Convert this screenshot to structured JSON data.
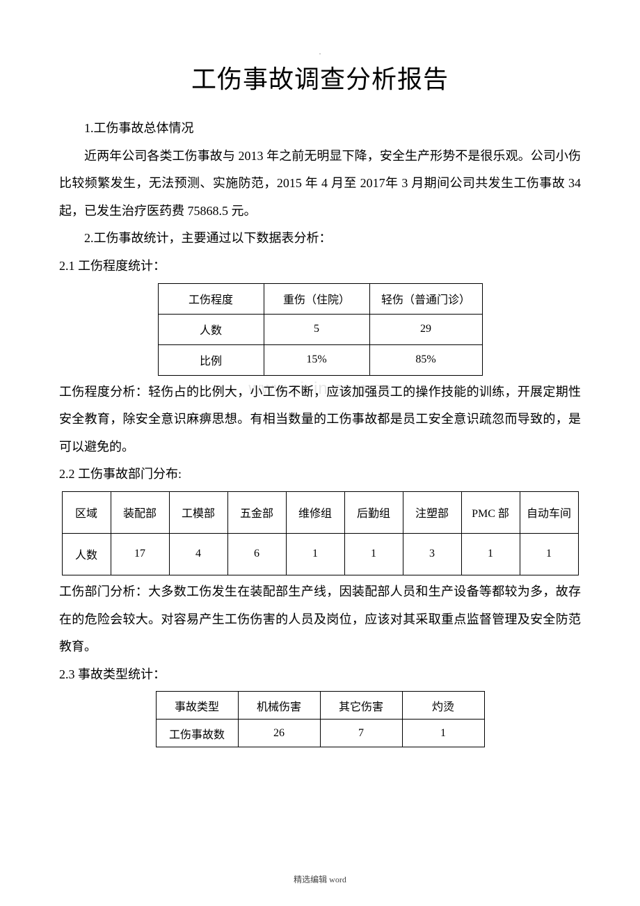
{
  "header_marker": ".",
  "title": "工伤事故调查分析报告",
  "section1": {
    "heading": "1.工伤事故总体情况",
    "para": "近两年公司各类工伤事故与 2013 年之前无明显下降，安全生产形势不是很乐观。公司小伤比较频繁发生，无法预测、实施防范，2015 年 4 月至 2017年 3 月期间公司共发生工伤事故 34 起，已发生治疗医药费 75868.5 元。"
  },
  "section2": {
    "heading": "2.工伤事故统计，主要通过以下数据表分析：",
    "sub1": {
      "heading": "2.1 工伤程度统计：",
      "table": {
        "rows": [
          [
            "工伤程度",
            "重伤（住院）",
            "轻伤（普通门诊）"
          ],
          [
            "人数",
            "5",
            "29"
          ],
          [
            "比例",
            "15%",
            "85%"
          ]
        ]
      },
      "analysis": "工伤程度分析：轻伤占的比例大，小工伤不断，应该加强员工的操作技能的训练，开展定期性安全教育，除安全意识麻痹思想。有相当数量的工伤事故都是员工安全意识疏忽而导致的，是可以避免的。"
    },
    "sub2": {
      "heading": "2.2 工伤事故部门分布:",
      "table": {
        "rows": [
          [
            "区域",
            "装配部",
            "工模部",
            "五金部",
            "维修组",
            "后勤组",
            "注塑部",
            "PMC 部",
            "自动车间"
          ],
          [
            "人数",
            "17",
            "4",
            "6",
            "1",
            "1",
            "3",
            "1",
            "1"
          ]
        ]
      },
      "analysis": "工伤部门分析：大多数工伤发生在装配部生产线，因装配部人员和生产设备等都较为多，故存在的危险会较大。对容易产生工伤伤害的人员及岗位，应该对其采取重点监督管理及安全防范教育。"
    },
    "sub3": {
      "heading": "2.3 事故类型统计：",
      "table": {
        "rows": [
          [
            "事故类型",
            "机械伤害",
            "其它伤害",
            "灼烫"
          ],
          [
            "工伤事故数",
            "26",
            "7",
            "1"
          ]
        ]
      }
    }
  },
  "watermark": "www.zixin.com.cn",
  "footer": "精选编辑 word"
}
